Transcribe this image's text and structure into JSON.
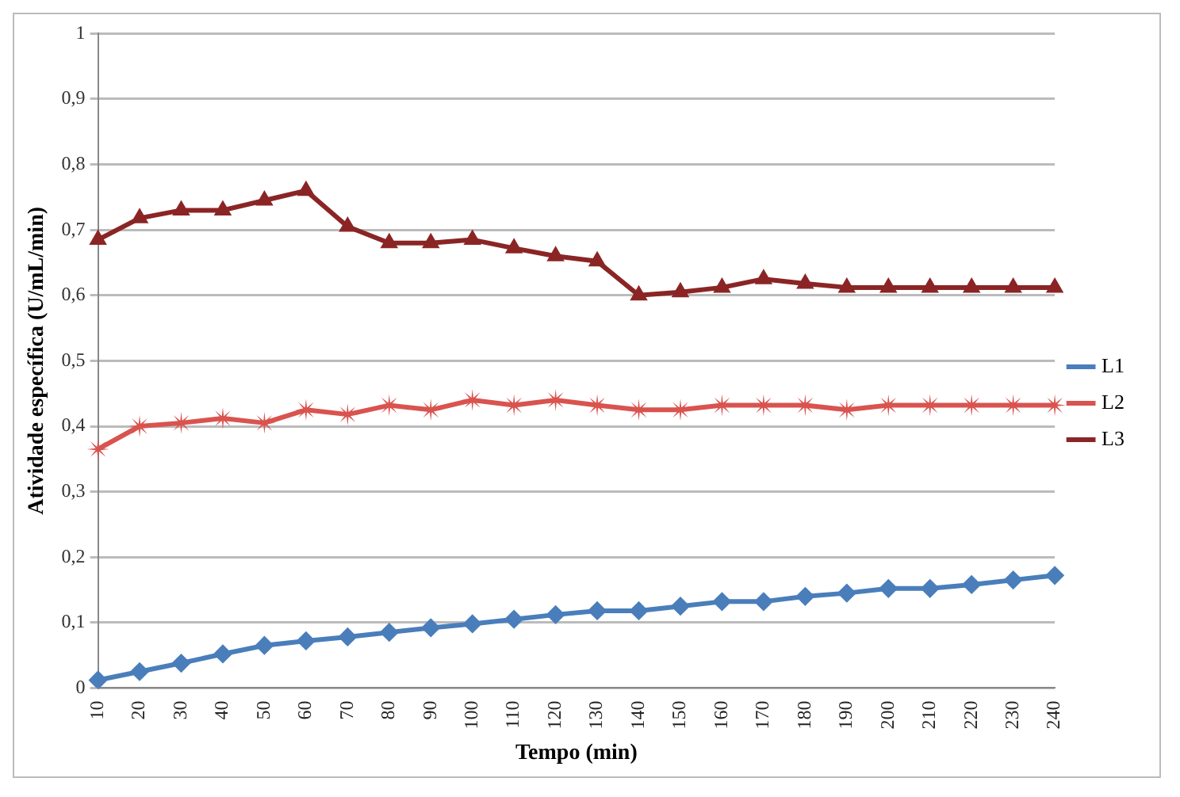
{
  "chart_data": {
    "type": "line",
    "xlabel": "Tempo (min)",
    "ylabel": "Atividade específica (U/mL/min)",
    "categories": [
      "10",
      "20",
      "30",
      "40",
      "50",
      "60",
      "70",
      "80",
      "90",
      "100",
      "110",
      "120",
      "130",
      "140",
      "150",
      "160",
      "170",
      "180",
      "190",
      "200",
      "210",
      "220",
      "230",
      "240"
    ],
    "series": [
      {
        "name": "L1",
        "color": "#4a7ebb",
        "marker": "diamond",
        "values": [
          0.012,
          0.025,
          0.038,
          0.052,
          0.065,
          0.072,
          0.078,
          0.085,
          0.092,
          0.098,
          0.105,
          0.112,
          0.118,
          0.118,
          0.125,
          0.132,
          0.132,
          0.14,
          0.145,
          0.152,
          0.152,
          0.158,
          0.165,
          0.172
        ]
      },
      {
        "name": "L2",
        "color": "#d9534f",
        "marker": "star",
        "values": [
          0.365,
          0.4,
          0.405,
          0.412,
          0.405,
          0.425,
          0.418,
          0.432,
          0.425,
          0.44,
          0.432,
          0.44,
          0.432,
          0.425,
          0.425,
          0.432,
          0.432,
          0.432,
          0.425,
          0.432,
          0.432,
          0.432,
          0.432,
          0.432
        ]
      },
      {
        "name": "L3",
        "color": "#8b2525",
        "marker": "triangle",
        "values": [
          0.685,
          0.718,
          0.73,
          0.73,
          0.745,
          0.76,
          0.705,
          0.68,
          0.68,
          0.685,
          0.672,
          0.66,
          0.652,
          0.6,
          0.605,
          0.612,
          0.625,
          0.618,
          0.612,
          0.612,
          0.612,
          0.612,
          0.612,
          0.612
        ]
      }
    ],
    "ylim": [
      0,
      1
    ],
    "yticks": [
      0,
      {
        "value": 0.1,
        "label": "0,1"
      },
      {
        "value": 0.2,
        "label": "0,2"
      },
      {
        "value": 0.3,
        "label": "0,3"
      },
      {
        "value": 0.4,
        "label": "0,4"
      },
      {
        "value": 0.5,
        "label": "0,5"
      },
      {
        "value": 0.6,
        "label": "0,6"
      },
      {
        "value": 0.7,
        "label": "0,7"
      },
      {
        "value": 0.8,
        "label": "0,8"
      },
      {
        "value": 0.9,
        "label": "0,9"
      },
      1
    ],
    "grid": "y",
    "legend": "right",
    "line_style": "solid"
  }
}
